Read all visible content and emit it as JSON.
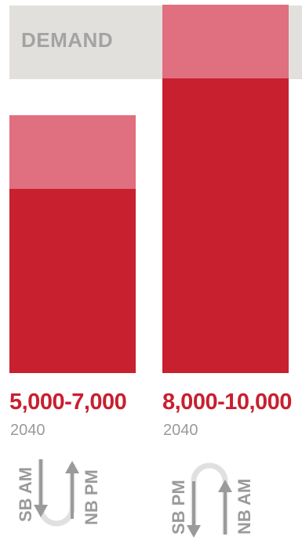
{
  "chart_data": {
    "type": "bar",
    "title": "",
    "band_label": "DEMAND",
    "categories": [
      "5,000-7,000",
      "8,000-10,000"
    ],
    "ranges": [
      [
        5000,
        7000
      ],
      [
        8000,
        10000
      ]
    ],
    "years": [
      "2040",
      "2040"
    ],
    "direction_labels": [
      {
        "down": "SB AM",
        "up": "NB PM"
      },
      {
        "down": "SB PM",
        "up": "NB AM"
      }
    ],
    "ylim": [
      0,
      10000
    ],
    "colors": {
      "range_low": "#c8202f",
      "range_high": "#e06f80",
      "band": "#e2e0dc",
      "label": "#c8202f",
      "muted": "#9a9a9a"
    }
  }
}
